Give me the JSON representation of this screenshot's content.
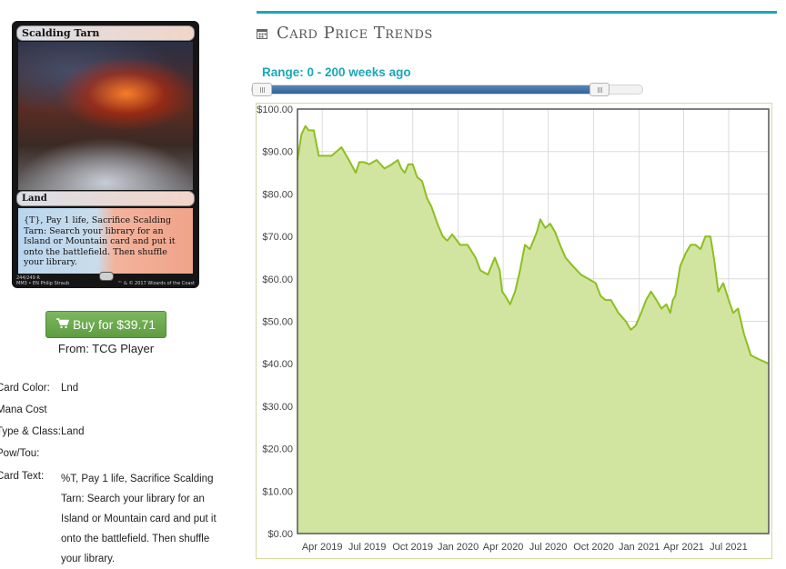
{
  "card": {
    "name": "Scalding Tarn",
    "type_line": "Land",
    "rules_text": "{T}, Pay 1 life, Sacrifice Scalding Tarn: Search your library for an Island or Mountain card and put it onto the battlefield. Then shuffle your library.",
    "collector_line": "244/249 R",
    "set_line": "MM3 • EN",
    "artist": "Philip Straub",
    "copyright": "™ & © 2017 Wizards of the Coast"
  },
  "buy": {
    "label": "Buy for $39.71",
    "icon": "shopping-cart-icon",
    "from": "From: TCG Player",
    "color": "#6aab4c"
  },
  "details": [
    {
      "label": "Card Color:",
      "value": "Lnd"
    },
    {
      "label": "Mana Cost",
      "value": ""
    },
    {
      "label": "Type & Class:",
      "value": "Land"
    },
    {
      "label": "Pow/Tou:",
      "value": ""
    },
    {
      "label": "Card Text:",
      "value": "%T, Pay 1 life, Sacrifice Scalding Tarn: Search your library for an Island or Mountain card and put it onto the battlefield. Then shuffle your library."
    }
  ],
  "panel": {
    "title": "Card Price Trends",
    "title_icon": "calendar-icon",
    "range_label": "Range: 0 - 200 weeks ago",
    "accent": "#1aa8b8",
    "slider": {
      "min_weeks": 0,
      "max_weeks": 200
    }
  },
  "chart_data": {
    "type": "area",
    "title": "",
    "xlabel": "",
    "ylabel": "",
    "ylim": [
      0,
      100
    ],
    "yticks": [
      "$0.00",
      "$10.00",
      "$20.00",
      "$30.00",
      "$40.00",
      "$50.00",
      "$60.00",
      "$70.00",
      "$80.00",
      "$90.00",
      "$100.00"
    ],
    "xlim": [
      "2019-02-10",
      "2021-09-20"
    ],
    "xticks": [
      {
        "date": "2019-04-01",
        "label": "Apr 2019"
      },
      {
        "date": "2019-07-01",
        "label": "Jul 2019"
      },
      {
        "date": "2019-10-01",
        "label": "Oct 2019"
      },
      {
        "date": "2020-01-01",
        "label": "Jan 2020"
      },
      {
        "date": "2020-04-01",
        "label": "Apr 2020"
      },
      {
        "date": "2020-07-01",
        "label": "Jul 2020"
      },
      {
        "date": "2020-10-01",
        "label": "Oct 2020"
      },
      {
        "date": "2021-01-01",
        "label": "Jan 2021"
      },
      {
        "date": "2021-04-01",
        "label": "Apr 2021"
      },
      {
        "date": "2021-07-01",
        "label": "Jul 2021"
      }
    ],
    "grid": true,
    "line_color": "#8cbf1f",
    "fill_color": "#d2e5a0",
    "series": [
      {
        "x": [
          "2019-02-10",
          "2019-02-18",
          "2019-02-26",
          "2019-03-05",
          "2019-03-15",
          "2019-03-25",
          "2019-04-05",
          "2019-04-20",
          "2019-05-10",
          "2019-05-25",
          "2019-06-08",
          "2019-06-15",
          "2019-06-25",
          "2019-07-05",
          "2019-07-20",
          "2019-08-05",
          "2019-08-20",
          "2019-09-01",
          "2019-09-08",
          "2019-09-15",
          "2019-09-22",
          "2019-10-01",
          "2019-10-10",
          "2019-10-20",
          "2019-10-30",
          "2019-11-08",
          "2019-11-20",
          "2019-12-01",
          "2019-12-10",
          "2019-12-20",
          "2020-01-05",
          "2020-01-20",
          "2020-02-05",
          "2020-02-15",
          "2020-03-01",
          "2020-03-15",
          "2020-03-25",
          "2020-03-30",
          "2020-04-05",
          "2020-04-15",
          "2020-04-25",
          "2020-05-05",
          "2020-05-15",
          "2020-05-25",
          "2020-06-01",
          "2020-06-08",
          "2020-06-15",
          "2020-06-25",
          "2020-07-05",
          "2020-07-15",
          "2020-07-25",
          "2020-08-05",
          "2020-08-20",
          "2020-09-05",
          "2020-09-20",
          "2020-10-05",
          "2020-10-15",
          "2020-10-25",
          "2020-11-05",
          "2020-11-20",
          "2020-12-05",
          "2020-12-15",
          "2020-12-25",
          "2021-01-05",
          "2021-01-15",
          "2021-01-25",
          "2021-02-05",
          "2021-02-15",
          "2021-02-25",
          "2021-03-05",
          "2021-03-10",
          "2021-03-15",
          "2021-03-25",
          "2021-04-05",
          "2021-04-15",
          "2021-04-25",
          "2021-05-05",
          "2021-05-15",
          "2021-05-25",
          "2021-06-01",
          "2021-06-10",
          "2021-06-20",
          "2021-07-01",
          "2021-07-10",
          "2021-07-20",
          "2021-08-01",
          "2021-08-15",
          "2021-09-01",
          "2021-09-20"
        ],
        "values": [
          88.0,
          94.0,
          96.0,
          95.0,
          95.0,
          89.0,
          89.0,
          89.0,
          91.0,
          88.0,
          85.0,
          87.5,
          87.5,
          87.0,
          88.0,
          86.0,
          87.0,
          88.0,
          86.0,
          85.0,
          87.0,
          87.0,
          84.0,
          83.0,
          79.0,
          77.0,
          73.0,
          70.0,
          69.0,
          70.5,
          68.0,
          68.0,
          65.0,
          62.0,
          61.0,
          65.0,
          62.0,
          57.0,
          56.0,
          54.0,
          57.0,
          62.0,
          68.0,
          67.0,
          69.0,
          71.0,
          74.0,
          72.0,
          73.0,
          71.0,
          68.0,
          65.0,
          63.0,
          61.0,
          60.0,
          59.0,
          56.0,
          55.0,
          55.0,
          52.0,
          50.0,
          48.0,
          49.0,
          52.0,
          55.0,
          57.0,
          55.0,
          53.0,
          54.0,
          52.0,
          55.0,
          56.0,
          63.0,
          66.0,
          68.0,
          68.0,
          67.0,
          70.0,
          70.0,
          65.0,
          57.0,
          59.0,
          55.0,
          52.0,
          53.0,
          47.0,
          42.0,
          41.0,
          40.0
        ]
      }
    ]
  }
}
